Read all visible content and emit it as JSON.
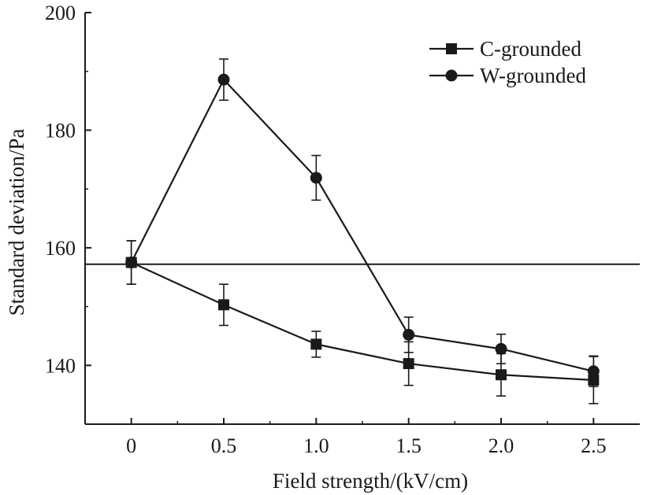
{
  "chart_data": {
    "type": "line",
    "xlabel": "Field strength/(kV/cm)",
    "ylabel": "Standard deviation/Pa",
    "xlim": [
      -0.25,
      2.75
    ],
    "ylim": [
      130,
      200
    ],
    "x_ticks": [
      0,
      0.5,
      1.0,
      1.5,
      2.0,
      2.5
    ],
    "x_tick_labels": [
      "0",
      "0.5",
      "1.0",
      "1.5",
      "2.0",
      "2.5"
    ],
    "y_ticks": [
      140,
      160,
      180,
      200
    ],
    "y_tick_labels": [
      "140",
      "160",
      "180",
      "200"
    ],
    "reference_line": {
      "y": 157.2
    },
    "legend_position": "top-right",
    "series": [
      {
        "name": "C-grounded",
        "marker": "square",
        "x": [
          0,
          0.5,
          1.0,
          1.5,
          2.0,
          2.5
        ],
        "values": [
          157.5,
          150.3,
          143.6,
          140.3,
          138.4,
          137.5
        ],
        "errors": [
          3.7,
          3.5,
          2.2,
          3.7,
          3.6,
          4.0
        ]
      },
      {
        "name": "W-grounded",
        "marker": "circle",
        "x": [
          0,
          0.5,
          1.0,
          1.5,
          2.0,
          2.5
        ],
        "values": [
          157.5,
          188.6,
          171.9,
          145.2,
          142.8,
          139.0
        ],
        "errors": [
          3.7,
          3.5,
          3.8,
          3.0,
          2.5,
          2.6
        ]
      }
    ],
    "grid": false
  },
  "colors": {
    "line": "#1a1a1a",
    "background": "#ffffff"
  }
}
